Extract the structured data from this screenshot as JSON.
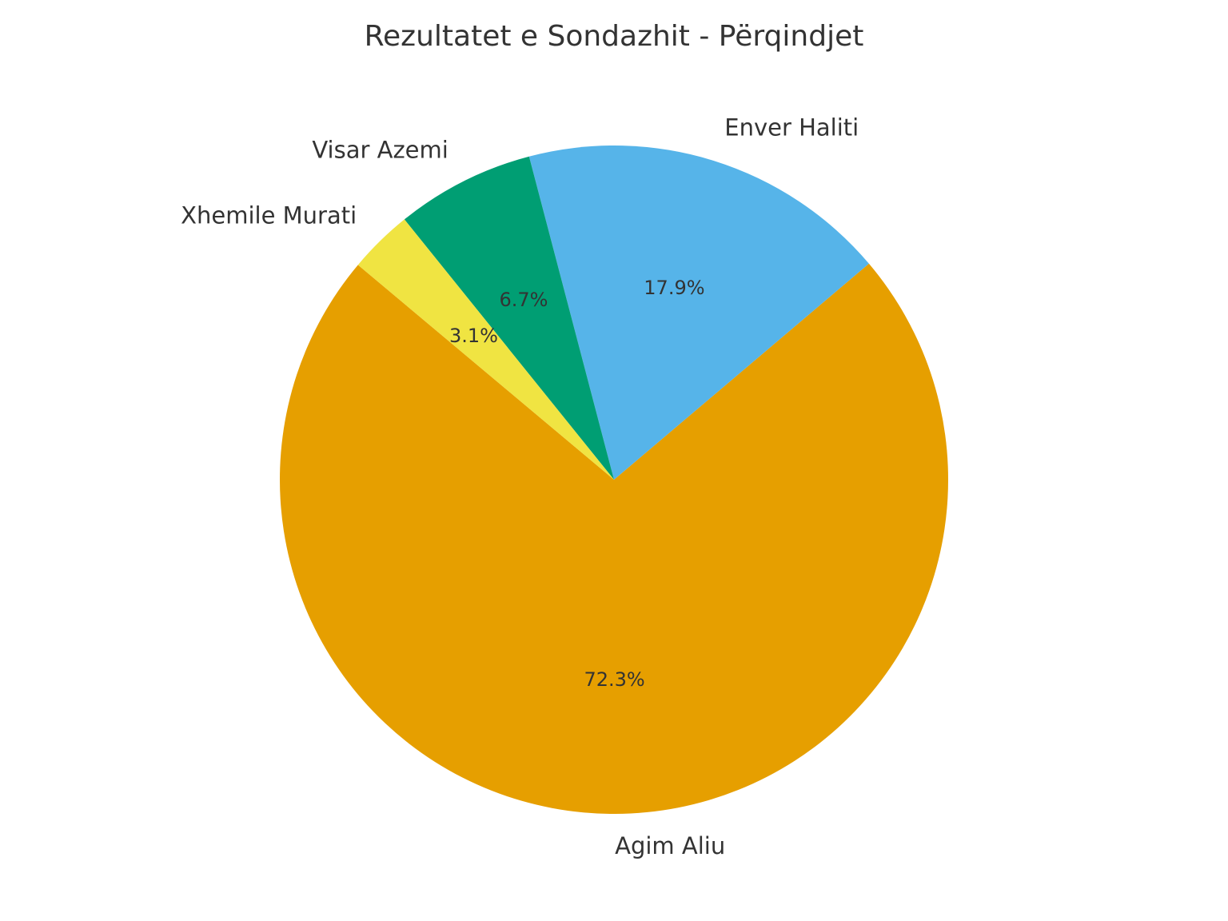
{
  "chart_data": {
    "type": "pie",
    "title": "Rezultatet e Sondazhit - Përqindjet",
    "categories": [
      "Agim Aliu",
      "Enver Haliti",
      "Visar Azemi",
      "Xhemile Murati"
    ],
    "values": [
      72.3,
      17.9,
      6.7,
      3.1
    ],
    "value_labels": [
      "72.3%",
      "17.9%",
      "6.7%",
      "3.1%"
    ],
    "colors": [
      "#E69F00",
      "#56B4E9",
      "#009E73",
      "#F0E442"
    ]
  }
}
